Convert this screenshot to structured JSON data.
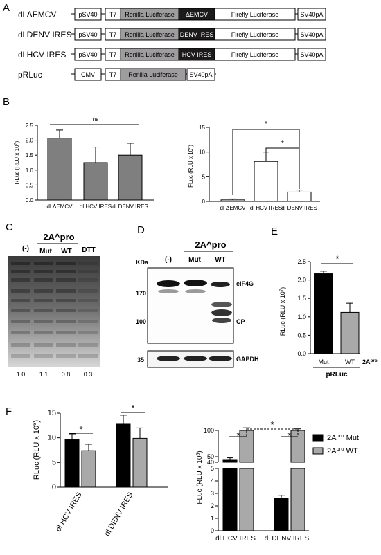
{
  "panels": {
    "A": "A",
    "B": "B",
    "C": "C",
    "D": "D",
    "E": "E",
    "F": "F"
  },
  "constructs": [
    {
      "label": "dl ΔEMCV",
      "boxes": [
        "pSV40",
        "T7",
        "Renilla Luciferase",
        "ΔEMCV",
        "Firefly Luciferase",
        "SV40pA"
      ]
    },
    {
      "label": "dl DENV IRES",
      "boxes": [
        "pSV40",
        "T7",
        "Renilla Luciferase",
        "DENV IRES",
        "Firefly Luciferase",
        "SV40pA"
      ]
    },
    {
      "label": "dl HCV IRES",
      "boxes": [
        "pSV40",
        "T7",
        "Renilla Luciferase",
        "HCV  IRES",
        "Firefly Luciferase",
        "SV40pA"
      ]
    },
    {
      "label": "pRLuc",
      "boxes": [
        "CMV",
        "T7",
        "Renilla Luciferase",
        "SV40pA"
      ]
    }
  ],
  "colors": {
    "renilla": "#9e9c9e",
    "ires": "#1c1a1a",
    "bar_grey": "#7f7f7f",
    "bar_black": "#000000",
    "bar_lightgrey": "#a9a9a9"
  },
  "chart_data": [
    {
      "id": "B-left",
      "type": "bar",
      "ylabel": "RLuc (RLU x 10^7)",
      "ylim": [
        0,
        2.5
      ],
      "yticks": [
        "0.0",
        "0.5",
        "1.0",
        "1.5",
        "2.0",
        "2.5"
      ],
      "categories": [
        "dl ΔEMCV",
        "dl HCV IRES",
        "dl DENV IRES"
      ],
      "values": [
        2.07,
        1.25,
        1.5
      ],
      "errors": [
        0.27,
        0.52,
        0.4
      ],
      "annotations": [
        "ns"
      ]
    },
    {
      "id": "B-right",
      "type": "bar",
      "ylabel": "FLuc (RLU x 10^6)",
      "ylim": [
        0,
        15
      ],
      "yticks": [
        "0",
        "5",
        "10",
        "15"
      ],
      "categories": [
        "dl ΔEMCV",
        "dl HCV IRES",
        "dl DENV IRES"
      ],
      "values": [
        0.3,
        8.1,
        1.9
      ],
      "errors": [
        0.2,
        1.9,
        0.4
      ],
      "annotations": [
        "*",
        "*"
      ]
    },
    {
      "id": "E",
      "type": "bar",
      "ylabel": "RLuc (RLU x 10^7)",
      "ylim": [
        0,
        2.5
      ],
      "yticks": [
        "0.0",
        "0.5",
        "1.0",
        "1.5",
        "2.0",
        "2.5"
      ],
      "categories": [
        "Mut",
        "WT"
      ],
      "values": [
        2.17,
        1.12
      ],
      "errors": [
        0.07,
        0.25
      ],
      "group_label": "pRLuc",
      "factor_label": "2A^pro",
      "annotations": [
        "*"
      ]
    },
    {
      "id": "F-left",
      "type": "bar",
      "ylabel": "RLuc (RLU x 10^6)",
      "ylim": [
        0,
        15
      ],
      "yticks": [
        "0",
        "5",
        "10",
        "15"
      ],
      "categories": [
        "dl HCV IRES",
        "dl DENV IRES"
      ],
      "series": [
        {
          "values": [
            9.6,
            12.9
          ],
          "errors": [
            1.2,
            1.7
          ]
        },
        {
          "values": [
            7.4,
            9.9
          ],
          "errors": [
            1.3,
            2.1
          ]
        }
      ],
      "annotations": [
        "*",
        "*"
      ]
    },
    {
      "id": "F-right",
      "type": "bar",
      "ylabel": "FLuc (RLU x 10^5)",
      "yticks_lower": [
        "0",
        "1",
        "2",
        "3",
        "4",
        "5"
      ],
      "yticks_upper": [
        "40",
        "50",
        "100"
      ],
      "categories": [
        "dl HCV IRES",
        "dl DENV IRES"
      ],
      "series": [
        {
          "name": "2A^pro Mut",
          "values": [
            45,
            2.6
          ],
          "errors": [
            3,
            0.25
          ]
        },
        {
          "name": "2A^pro WT",
          "values": [
            100,
            100
          ],
          "errors": [
            5,
            3
          ]
        }
      ],
      "legend": "right",
      "annotations": [
        "*",
        "*",
        "*"
      ]
    }
  ],
  "blot_c": {
    "header": "2A^pro",
    "lanes": [
      "(-)",
      "Mut",
      "WT",
      "DTT"
    ],
    "quant": [
      "1.0",
      "1.1",
      "0.8",
      "0.3"
    ]
  },
  "blot_d": {
    "header": "2A^pro",
    "lanes": [
      "(-)",
      "Mut",
      "WT"
    ],
    "unit": "KDa",
    "markers": [
      "170",
      "100",
      "35"
    ],
    "bands": [
      "eIF4G",
      "CP",
      "GAPDH"
    ]
  }
}
